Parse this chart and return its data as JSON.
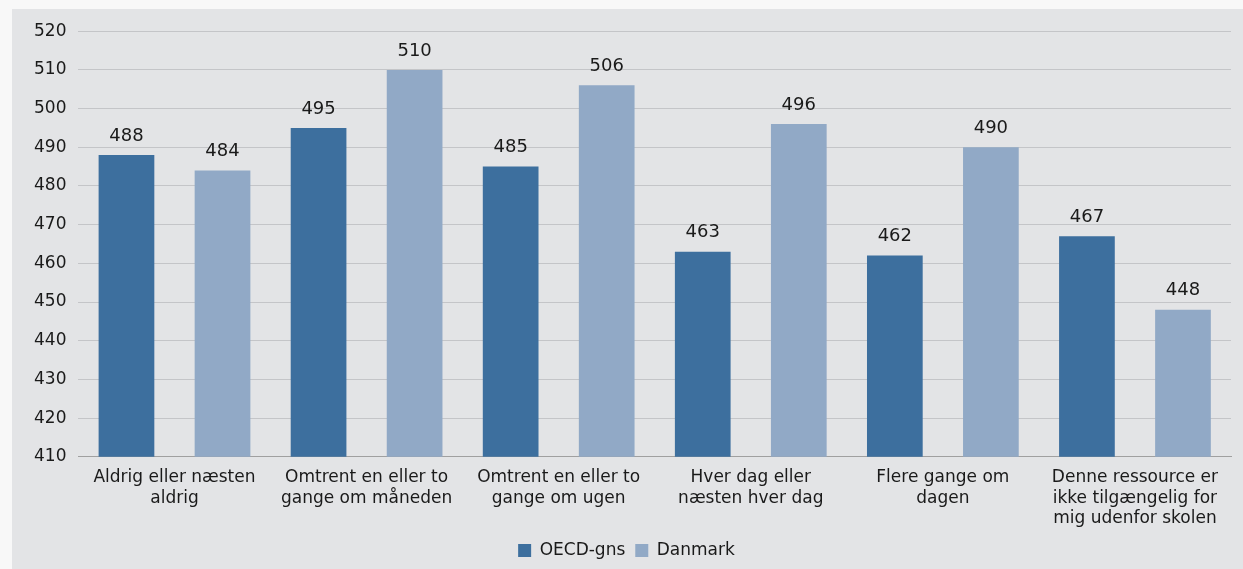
{
  "chart_data": {
    "type": "bar",
    "categories": [
      "Aldrig eller næsten aldrig",
      "Omtrent en eller to gange om måneden",
      "Omtrent en eller to gange om ugen",
      "Hver dag eller næsten hver dag",
      "Flere gange om dagen",
      "Denne ressource er ikke tilgængelig for mig udenfor skolen"
    ],
    "series": [
      {
        "name": "OECD-gns",
        "color": "#3d6f9e",
        "values": [
          488,
          495,
          485,
          463,
          462,
          467
        ]
      },
      {
        "name": "Danmark",
        "color": "#91a9c6",
        "values": [
          484,
          510,
          506,
          496,
          490,
          448
        ]
      }
    ],
    "ylim": [
      410,
      520
    ],
    "yticks": [
      410,
      420,
      430,
      440,
      450,
      460,
      470,
      480,
      490,
      500,
      510,
      520
    ],
    "grid": "y",
    "legend": "bottom",
    "data_labels": true
  }
}
